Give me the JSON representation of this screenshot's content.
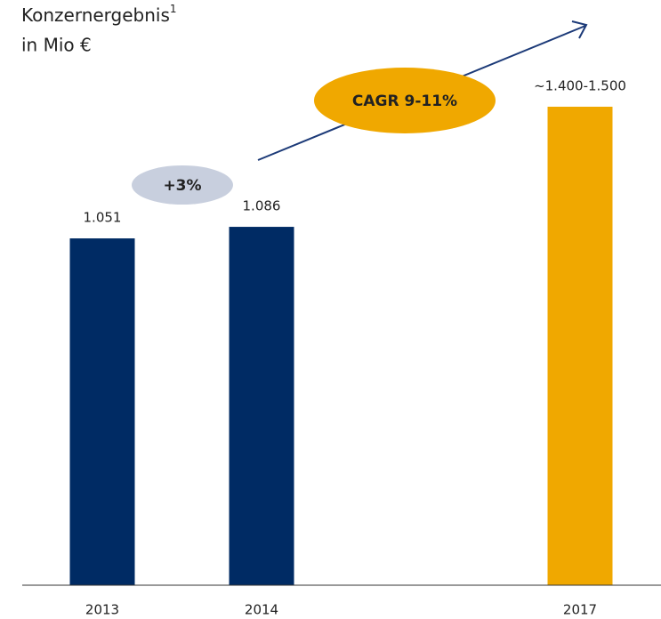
{
  "chart_data": {
    "type": "bar",
    "title": "Konzernergebnis",
    "title_footnote": "1",
    "subtitle": "in Mio €",
    "categories": [
      "2013",
      "2014",
      null,
      "2017"
    ],
    "values": [
      1051,
      1086,
      null,
      1450
    ],
    "value_labels": [
      "1.051",
      "1.086",
      null,
      "~1.400-1.500"
    ],
    "colors": [
      "#002b64",
      "#002b64",
      null,
      "#f0a800"
    ],
    "annotations": [
      {
        "text": "+3%",
        "color": "#c8cfde"
      },
      {
        "text": "CAGR 9-11%",
        "color": "#f0a800"
      }
    ],
    "arrow_color": "#1c3a78"
  }
}
